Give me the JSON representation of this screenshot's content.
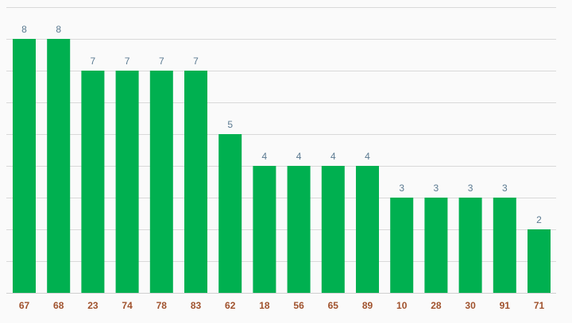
{
  "colors": {
    "bar": "#00b050",
    "data_label": "#5b7a91",
    "tick_label": "#a0522d",
    "grid": "#d9d9d9",
    "background": "#fafafa"
  },
  "chart_data": {
    "type": "bar",
    "title": "",
    "xlabel": "",
    "ylabel": "",
    "categories": [
      "67",
      "68",
      "23",
      "74",
      "78",
      "83",
      "62",
      "18",
      "56",
      "65",
      "89",
      "10",
      "28",
      "30",
      "91",
      "71"
    ],
    "values": [
      8,
      8,
      7,
      7,
      7,
      7,
      5,
      4,
      4,
      4,
      4,
      3,
      3,
      3,
      3,
      2
    ],
    "ylim": [
      0,
      9
    ],
    "grid": true,
    "show_y_axis_labels": false,
    "show_data_labels": true
  }
}
